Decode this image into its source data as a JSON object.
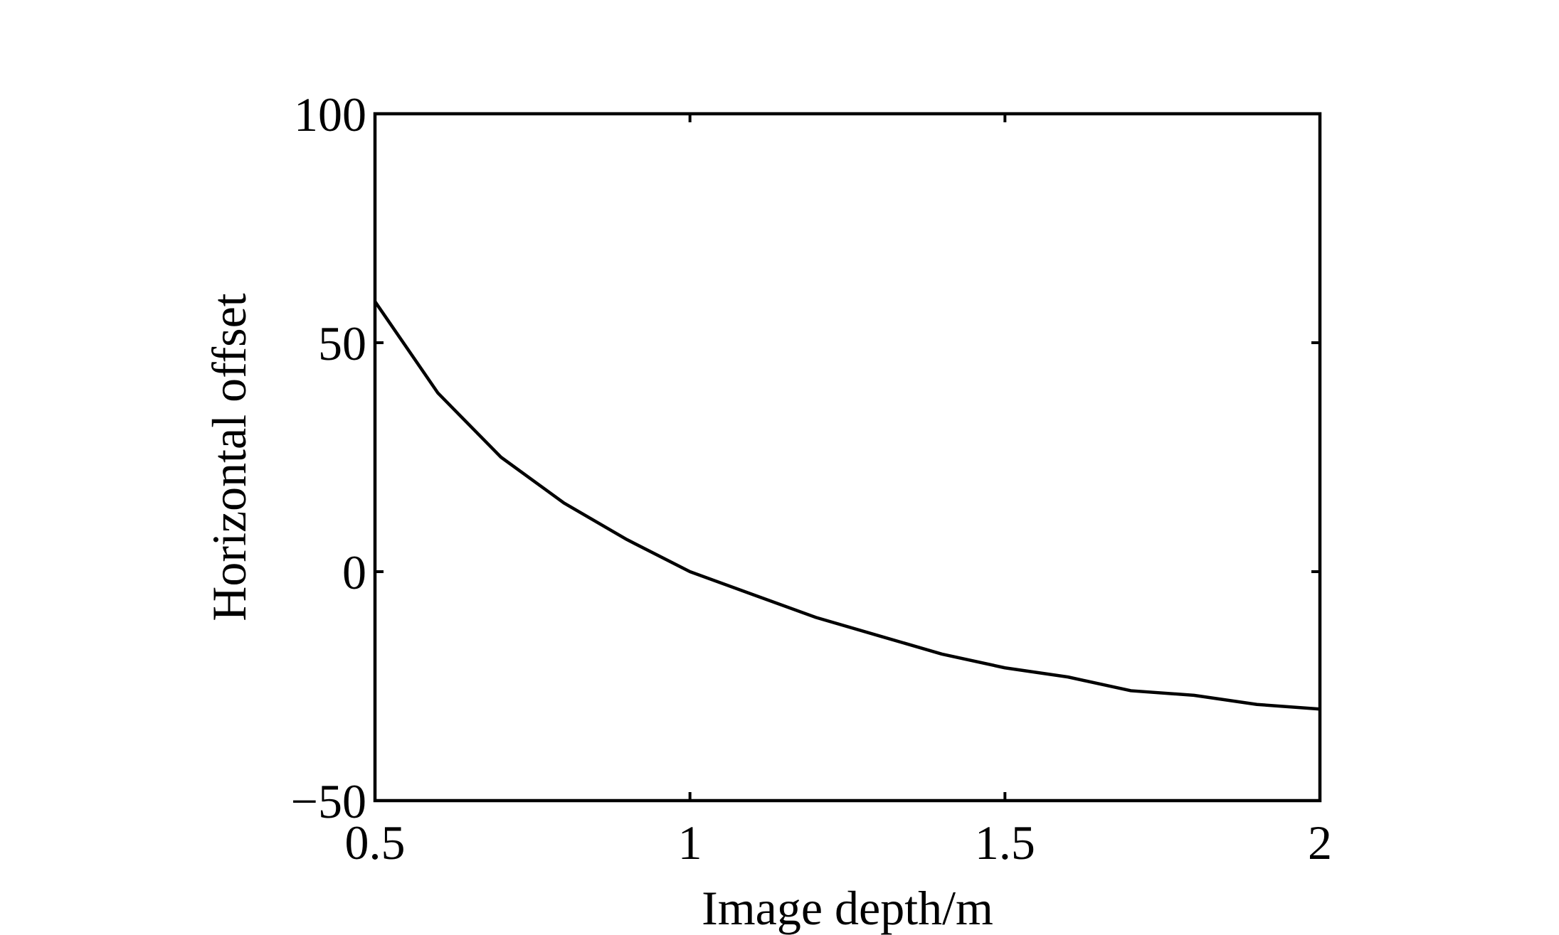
{
  "chart_data": {
    "type": "line",
    "x_label": "Image depth/m",
    "y_label": "Horizontal offset",
    "x": [
      0.5,
      0.6,
      0.7,
      0.8,
      0.9,
      1.0,
      1.1,
      1.2,
      1.3,
      1.4,
      1.5,
      1.6,
      1.7,
      1.8,
      1.9,
      2.0
    ],
    "series": [
      {
        "color": "#000000",
        "values": [
          59,
          39,
          25,
          15,
          7,
          0,
          -5,
          -10,
          -14,
          -18,
          -21,
          -23,
          -26,
          -27,
          -29,
          -30
        ]
      }
    ],
    "xlim": [
      0.5,
      2
    ],
    "xticks": [
      0.5,
      1,
      1.5,
      2
    ],
    "ylim": [
      -50,
      100
    ],
    "yticks": [
      100,
      50,
      0,
      {
        "value": -50,
        "label": "−50"
      }
    ],
    "grid": false
  }
}
